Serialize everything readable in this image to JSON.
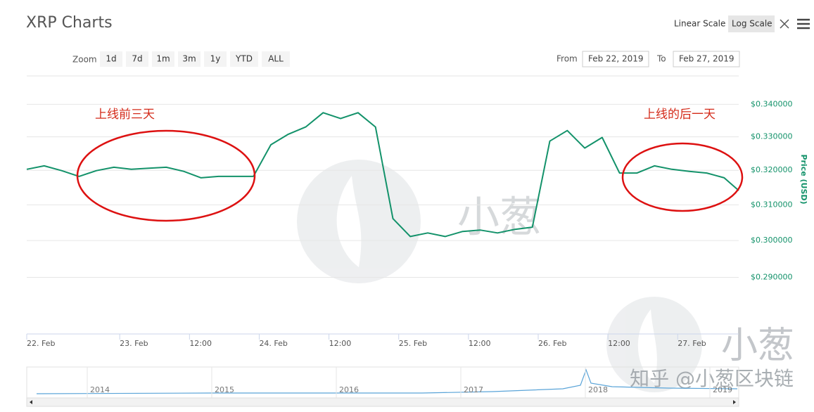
{
  "toolbar": {
    "scale_buttons": [
      "Linear Scale",
      "Log Scale"
    ],
    "active_scale": "Log Scale",
    "zoom_label": "Zoom",
    "zoom_buttons": [
      "1d",
      "7d",
      "1m",
      "3m",
      "1y",
      "YTD",
      "ALL"
    ],
    "from_label": "From",
    "from_value": "Feb 22, 2019",
    "to_label": "To",
    "to_value": "Feb 27, 2019"
  },
  "chart_data": {
    "type": "line",
    "title": "XRP Charts",
    "y_label": "Price (USD)",
    "log_scale": true,
    "grid": true,
    "color": "#13926a",
    "x": [
      "2019-02-22T08:00",
      "2019-02-22T11:00",
      "2019-02-22T14:00",
      "2019-02-22T17:00",
      "2019-02-22T20:00",
      "2019-02-22T23:00",
      "2019-02-23T02:00",
      "2019-02-23T05:00",
      "2019-02-23T08:00",
      "2019-02-23T11:00",
      "2019-02-23T14:00",
      "2019-02-23T17:00",
      "2019-02-23T20:00",
      "2019-02-23T23:00",
      "2019-02-24T02:00",
      "2019-02-24T05:00",
      "2019-02-24T08:00",
      "2019-02-24T11:00",
      "2019-02-24T14:00",
      "2019-02-24T17:00",
      "2019-02-24T20:00",
      "2019-02-24T23:00",
      "2019-02-25T02:00",
      "2019-02-25T05:00",
      "2019-02-25T08:00",
      "2019-02-25T11:00",
      "2019-02-25T14:00",
      "2019-02-25T17:00",
      "2019-02-25T20:00",
      "2019-02-25T23:00",
      "2019-02-26T02:00",
      "2019-02-26T05:00",
      "2019-02-26T08:00",
      "2019-02-26T11:00",
      "2019-02-26T14:00",
      "2019-02-26T17:00",
      "2019-02-26T20:00",
      "2019-02-26T23:00",
      "2019-02-27T02:00",
      "2019-02-27T05:00",
      "2019-02-27T08:00",
      "2019-02-27T10:30"
    ],
    "values": [
      0.3203,
      0.3213,
      0.3199,
      0.3182,
      0.3199,
      0.3209,
      0.3203,
      0.3206,
      0.3209,
      0.3197,
      0.3178,
      0.3182,
      0.3182,
      0.3182,
      0.3276,
      0.3308,
      0.333,
      0.3374,
      0.3356,
      0.3374,
      0.333,
      0.3061,
      0.3011,
      0.3021,
      0.3011,
      0.3025,
      0.3029,
      0.3021,
      0.3031,
      0.3037,
      0.3287,
      0.3319,
      0.3266,
      0.3298,
      0.3192,
      0.3192,
      0.3213,
      0.3203,
      0.3197,
      0.3192,
      0.3178,
      0.3141
    ],
    "xlim": [
      "2019-02-22T08:00",
      "2019-02-27T10:30"
    ],
    "xticks": [
      {
        "value": "2019-02-22T08:00",
        "label": "22. Feb"
      },
      {
        "value": "2019-02-23T00:00",
        "label": "23. Feb"
      },
      {
        "value": "2019-02-23T12:00",
        "label": "12:00"
      },
      {
        "value": "2019-02-24T00:00",
        "label": "24. Feb"
      },
      {
        "value": "2019-02-24T12:00",
        "label": "12:00"
      },
      {
        "value": "2019-02-25T00:00",
        "label": "25. Feb"
      },
      {
        "value": "2019-02-25T12:00",
        "label": "12:00"
      },
      {
        "value": "2019-02-26T00:00",
        "label": "26. Feb"
      },
      {
        "value": "2019-02-26T12:00",
        "label": "12:00"
      },
      {
        "value": "2019-02-27T00:00",
        "label": "27. Feb"
      }
    ],
    "ylim": [
      0.2753,
      0.349
    ],
    "yticks": [
      {
        "value": 0.29,
        "label": "$0.290000"
      },
      {
        "value": 0.3,
        "label": "$0.300000"
      },
      {
        "value": 0.31,
        "label": "$0.310000"
      },
      {
        "value": 0.32,
        "label": "$0.320000"
      },
      {
        "value": 0.33,
        "label": "$0.330000"
      },
      {
        "value": 0.34,
        "label": "$0.340000"
      }
    ],
    "annotations": [
      "上线前三天",
      "上线的后一天"
    ],
    "navigator_labels": [
      "2014",
      "2015",
      "2016",
      "2017",
      "2018",
      "2019"
    ]
  },
  "watermark": {
    "logo_text": "小葱",
    "credit": "知乎 @小葱区块链"
  }
}
